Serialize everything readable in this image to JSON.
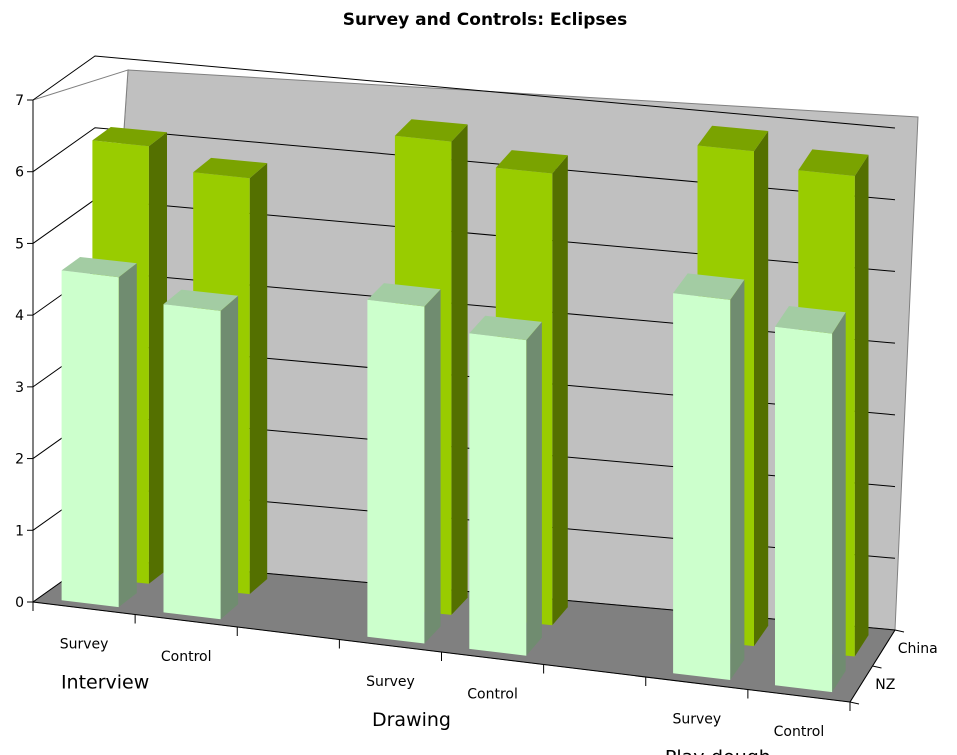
{
  "chart_data": {
    "type": "bar",
    "title": "Survey and Controls: Eclipses",
    "xlabel": "",
    "ylabel": "",
    "ylim": [
      0,
      7
    ],
    "yticks": [
      0,
      1,
      2,
      3,
      4,
      5,
      6,
      7
    ],
    "groups": [
      "Interview",
      "Drawing",
      "Play-dough"
    ],
    "categories": [
      "Survey",
      "Control",
      "Survey",
      "Control",
      "Survey",
      "Control"
    ],
    "series": [
      {
        "name": "NZ",
        "color": "#ccffcc",
        "values": [
          4.6,
          4.3,
          4.7,
          4.4,
          5.3,
          5.0
        ]
      },
      {
        "name": "China",
        "color": "#99cc00",
        "values": [
          6.1,
          5.8,
          6.6,
          6.3,
          6.9,
          6.7
        ]
      }
    ],
    "grid": true,
    "view": "3d"
  }
}
